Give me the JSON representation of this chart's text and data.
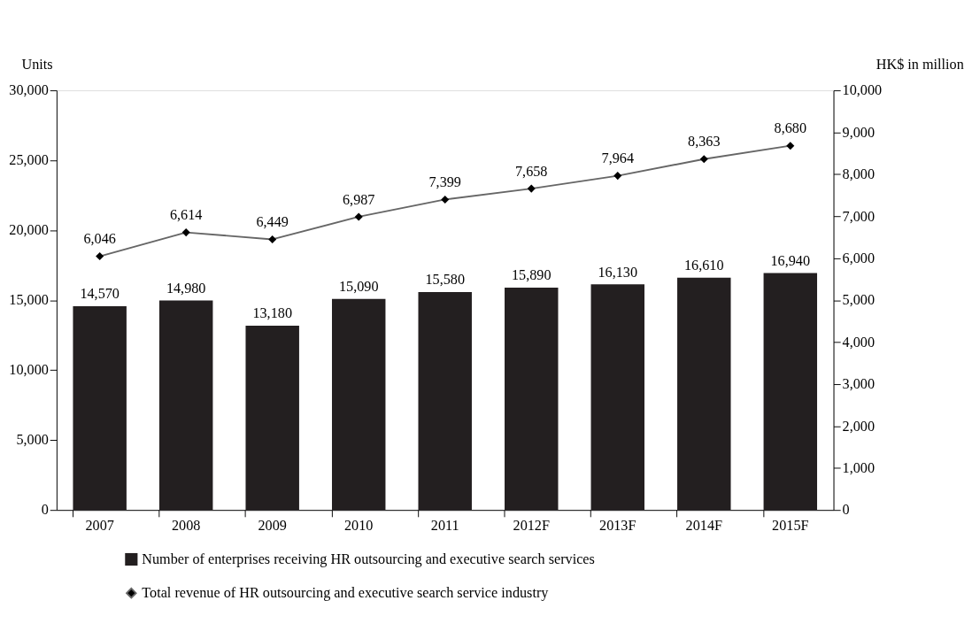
{
  "chart_data": {
    "type": "bar",
    "categories": [
      "2007",
      "2008",
      "2009",
      "2010",
      "2011",
      "2012F",
      "2013F",
      "2014F",
      "2015F"
    ],
    "ylabel": "Units",
    "y2label": "HK$ in million",
    "series": [
      {
        "name": "Number of enterprises receiving HR outsourcing and executive search services",
        "values": [
          14570,
          14980,
          13180,
          15090,
          15580,
          15890,
          16130,
          16610,
          16940
        ],
        "value_labels": [
          "14,570",
          "14,980",
          "13,180",
          "15,090",
          "15,580",
          "15,890",
          "16,130",
          "16,610",
          "16,940"
        ],
        "color": "#231f20"
      },
      {
        "name": "Total revenue of HR outsourcing and executive search service industry",
        "type": "line",
        "axis": "y2",
        "color": "#666666",
        "values": [
          6046,
          6614,
          6449,
          6987,
          7399,
          7658,
          7964,
          8363,
          8680
        ],
        "value_labels": [
          "6,046",
          "6,614",
          "6,449",
          "6,987",
          "7,399",
          "7,658",
          "7,964",
          "8,363",
          "8,680"
        ]
      }
    ],
    "ylim": [
      0,
      30000
    ],
    "yticks": [
      0,
      {
        "value": 5000,
        "label": "5,000"
      },
      {
        "value": 10000,
        "label": "10,000"
      },
      {
        "value": 15000,
        "label": "15,000"
      },
      {
        "value": 20000,
        "label": "20,000"
      },
      {
        "value": 25000,
        "label": "25,000"
      },
      {
        "value": 30000,
        "label": "30,000"
      }
    ],
    "y2lim": [
      0,
      10000
    ],
    "y2ticks": [
      0,
      {
        "value": 1000,
        "label": "1,000"
      },
      {
        "value": 2000,
        "label": "2,000"
      },
      {
        "value": 3000,
        "label": "3,000"
      },
      {
        "value": 4000,
        "label": "4,000"
      },
      {
        "value": 5000,
        "label": "5,000"
      },
      {
        "value": 6000,
        "label": "6,000"
      },
      {
        "value": 7000,
        "label": "7,000"
      },
      {
        "value": 8000,
        "label": "8,000"
      },
      {
        "value": 9000,
        "label": "9,000"
      },
      {
        "value": 10000,
        "label": "10,000"
      }
    ],
    "grid": false,
    "legend": "bottom",
    "marker": "diamond",
    "line_style": "solid"
  }
}
